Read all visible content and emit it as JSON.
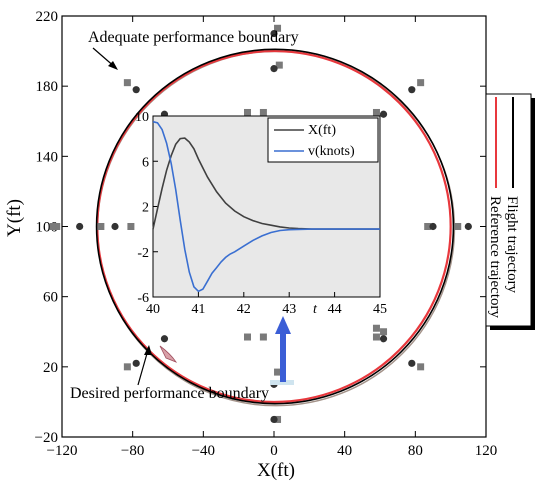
{
  "chart_data": [
    {
      "type": "scatter",
      "xlabel": "X(ft)",
      "ylabel": "Y(ft)",
      "xlim": [
        -120,
        120
      ],
      "ylim": [
        -20,
        220
      ],
      "xticks": [
        -120,
        -80,
        -40,
        0,
        40,
        80,
        120
      ],
      "yticks": [
        -20,
        20,
        60,
        100,
        140,
        180,
        220
      ],
      "xtick_labels": [
        "−120",
        "−80",
        "−40",
        "0",
        "40",
        "80",
        "120"
      ],
      "ytick_labels": [
        "−20",
        "20",
        "60",
        "100",
        "140",
        "180",
        "220"
      ],
      "series": [
        {
          "name": "Flight trajectory",
          "kind": "line",
          "color": "#000000",
          "center": [
            0,
            100
          ],
          "radius": 101
        },
        {
          "name": "Reference trajectory",
          "kind": "line",
          "color": "#e8383d",
          "center": [
            0,
            100
          ],
          "radius": 100
        }
      ],
      "adequate_markers": [
        [
          0,
          190
        ],
        [
          62,
          164
        ],
        [
          90,
          100
        ],
        [
          62,
          36
        ],
        [
          0,
          10
        ],
        [
          -62,
          36
        ],
        [
          -90,
          100
        ],
        [
          -62,
          164
        ]
      ],
      "desired_markers": [
        [
          0,
          210
        ],
        [
          78,
          178
        ],
        [
          110,
          100
        ],
        [
          78,
          22
        ],
        [
          0,
          -10
        ],
        [
          -78,
          22
        ],
        [
          -110,
          100
        ],
        [
          -78,
          178
        ]
      ],
      "square_markers": [
        [
          2,
          213
        ],
        [
          3,
          192
        ],
        [
          -6,
          165
        ],
        [
          -15,
          165
        ],
        [
          -6,
          37
        ],
        [
          -15,
          37
        ],
        [
          2,
          17
        ],
        [
          2,
          -10
        ],
        [
          -83,
          182
        ],
        [
          -83,
          20
        ],
        [
          -123,
          100
        ],
        [
          -81,
          100
        ],
        [
          -98,
          100
        ],
        [
          -125,
          100
        ],
        [
          83,
          182
        ],
        [
          58,
          165
        ],
        [
          58,
          37
        ],
        [
          83,
          20
        ],
        [
          87,
          100
        ],
        [
          104,
          100
        ],
        [
          62,
          40
        ],
        [
          58,
          42
        ]
      ],
      "annotations": [
        "Adequate performance boundary",
        "Desired performance boundary"
      ],
      "legend": {
        "position": "right",
        "entries": [
          "Flight trajectory",
          "Reference trajectory"
        ]
      }
    },
    {
      "type": "line",
      "inset": true,
      "xlabel": "t",
      "xlim": [
        40,
        45
      ],
      "ylim": [
        -6,
        10
      ],
      "xticks": [
        40,
        41,
        42,
        43,
        44,
        45
      ],
      "yticks": [
        -6,
        -2,
        2,
        6,
        10
      ],
      "xtick_labels": [
        "40",
        "41",
        "42",
        "43",
        "44",
        "45"
      ],
      "ytick_labels": [
        "-6",
        "-2",
        "2",
        "6",
        "10"
      ],
      "legend": {
        "position": "top-right",
        "entries": [
          "X(ft)",
          "v(knots)"
        ]
      },
      "series": [
        {
          "name": "X(ft)",
          "color": "#404040",
          "x": [
            40,
            40.1,
            40.2,
            40.3,
            40.4,
            40.5,
            40.6,
            40.7,
            40.8,
            40.9,
            41,
            41.1,
            41.2,
            41.4,
            41.6,
            41.8,
            42,
            42.2,
            42.4,
            42.6,
            42.8,
            43,
            43.2,
            43.5,
            44,
            44.5,
            45
          ],
          "y": [
            0,
            1.8,
            3.6,
            5.2,
            6.5,
            7.5,
            8,
            8.05,
            7.7,
            7.1,
            6.2,
            5.4,
            4.6,
            3.3,
            2.3,
            1.6,
            1.1,
            0.75,
            0.5,
            0.35,
            0.2,
            0.1,
            0.05,
            0,
            0,
            0,
            0
          ]
        },
        {
          "name": "v(knots)",
          "color": "#3a6fd1",
          "x": [
            40,
            40.1,
            40.2,
            40.3,
            40.4,
            40.5,
            40.6,
            40.7,
            40.8,
            40.9,
            41,
            41.1,
            41.2,
            41.3,
            41.4,
            41.5,
            41.6,
            41.7,
            41.8,
            42,
            42.2,
            42.4,
            42.6,
            42.8,
            43,
            43.5,
            44,
            45
          ],
          "y": [
            9.5,
            9.4,
            8.8,
            7.6,
            5.8,
            3.5,
            0.8,
            -1.8,
            -3.8,
            -5.1,
            -5.5,
            -5.3,
            -4.6,
            -3.9,
            -3.4,
            -2.9,
            -2.5,
            -2.2,
            -2,
            -1.5,
            -1,
            -0.6,
            -0.3,
            -0.12,
            -0.05,
            0,
            0,
            0
          ]
        }
      ]
    }
  ]
}
